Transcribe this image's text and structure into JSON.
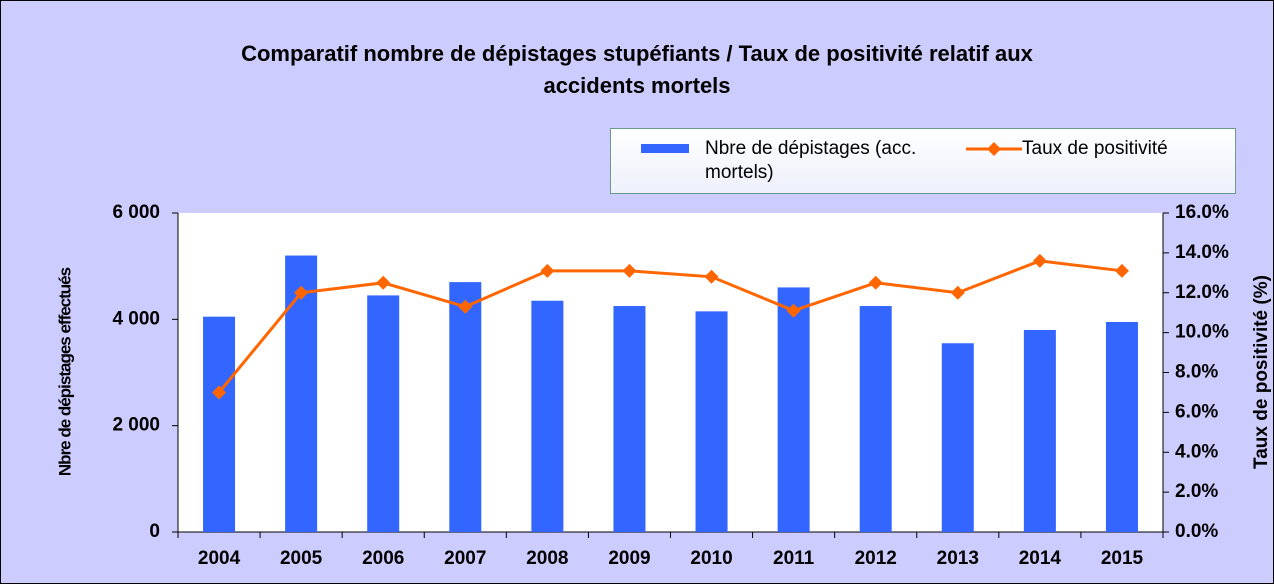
{
  "chart_data": {
    "type": "bar_line",
    "title": "Comparatif nombre de dépistages stupéfiants / Taux de positivité relatif aux accidents mortels",
    "categories": [
      "2004",
      "2005",
      "2006",
      "2007",
      "2008",
      "2009",
      "2010",
      "2011",
      "2012",
      "2013",
      "2014",
      "2015"
    ],
    "series": [
      {
        "name": "Nbre de dépistages (acc. mortels)",
        "type": "bar",
        "color": "#3366ff",
        "values": [
          4050,
          5200,
          4450,
          4700,
          4350,
          4250,
          4150,
          4600,
          4250,
          3550,
          3800,
          3950
        ]
      },
      {
        "name": "Taux de positivité",
        "type": "line",
        "axis": "y2",
        "color": "#ff6600",
        "values": [
          7.0,
          12.0,
          12.5,
          11.3,
          13.1,
          13.1,
          12.8,
          11.1,
          12.5,
          12.0,
          13.6,
          13.1
        ]
      }
    ],
    "ylabel": "Nbre de dépistages effectués",
    "y2label": "Taux de positivité (%)",
    "ylim": [
      0,
      6000
    ],
    "yticks": [
      0,
      {
        "value": 2000,
        "label": "2 000"
      },
      {
        "value": 4000,
        "label": "4 000"
      },
      {
        "value": 6000,
        "label": "6 000"
      }
    ],
    "y2lim": [
      0,
      16
    ],
    "y2ticks": [
      {
        "value": 0,
        "label": "0.0%"
      },
      {
        "value": 2,
        "label": "2.0%"
      },
      {
        "value": 4,
        "label": "4.0%"
      },
      {
        "value": 6,
        "label": "6.0%"
      },
      {
        "value": 8,
        "label": "8.0%"
      },
      {
        "value": 10,
        "label": "10.0%"
      },
      {
        "value": 12,
        "label": "12.0%"
      },
      {
        "value": 14,
        "label": "14.0%"
      },
      {
        "value": 16,
        "label": "16.0%"
      }
    ]
  }
}
